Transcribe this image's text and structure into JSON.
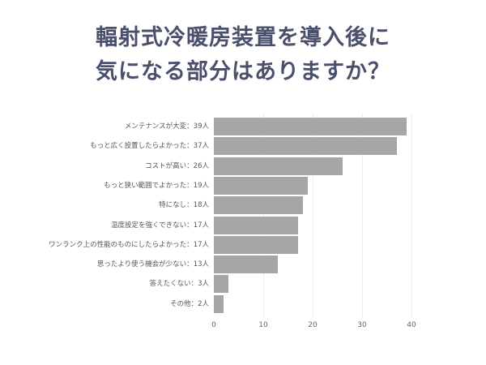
{
  "title": {
    "line1": "輻射式冷暖房装置を導入後に",
    "line2": "気になる部分はありますか？"
  },
  "chart_data": {
    "type": "bar",
    "orientation": "horizontal",
    "title": "輻射式冷暖房装置を導入後に気になる部分はありますか？",
    "categories": [
      "メンテナンスが大変",
      "もっと広く設置したらよかった",
      "コストが高い",
      "もっと狭い範囲でよかった",
      "特になし",
      "温度設定を強くできない",
      "ワンランク上の性能のものにしたらよかった",
      "思ったより使う機会が少ない",
      "答えたくない",
      "その他"
    ],
    "labels": [
      "メンテナンスが大変：39人",
      "もっと広く設置したらよかった：37人",
      "コストが高い：26人",
      "もっと狭い範囲でよかった：19人",
      "特になし：18人",
      "温度設定を強くできない：17人",
      "ワンランク上の性能のものにしたらよかった：17人",
      "思ったより使う機会が少ない：13人",
      "答えたくない：3人",
      "その他：2人"
    ],
    "values": [
      39,
      37,
      26,
      19,
      18,
      17,
      17,
      13,
      3,
      2
    ],
    "xlabel": "",
    "ylabel": "",
    "xlim": [
      0,
      40
    ],
    "xticks": [
      "0",
      "10",
      "20",
      "30",
      "40"
    ],
    "grid": true,
    "bar_color": "#a6a6a6",
    "title_color": "#4a4f6b"
  }
}
